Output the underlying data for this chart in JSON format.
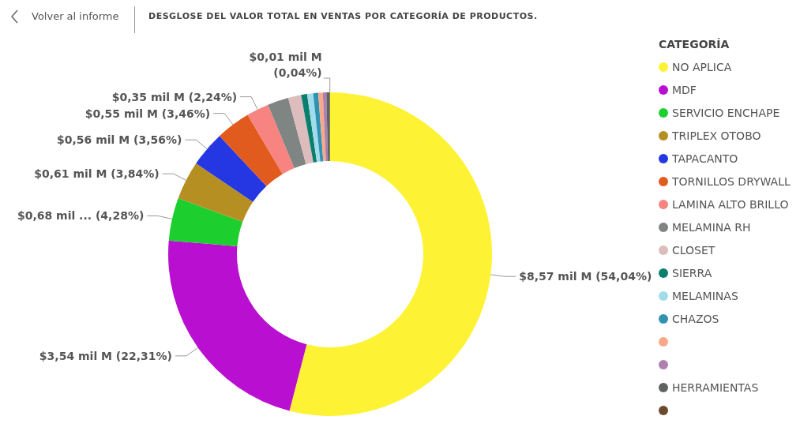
{
  "chart_data": {
    "type": "donut",
    "title": "DESGLOSE DEL VALOR TOTAL EN VENTAS POR CATEGORÍA DE PRODUCTOS.",
    "annotations": [
      "Volver al informe"
    ],
    "legend_title": "CATEGORÍA",
    "legend": "right",
    "categories": [
      "NO APLICA",
      "MDF",
      "SERVICIO ENCHAPE",
      "TRIPLEX OTOBO",
      "TAPACANTO",
      "TORNILLOS DRYWALL",
      "LAMINA ALTO BRILLO",
      "MELAMINA RH",
      "CLOSET",
      "SIERRA",
      "MELAMINAS",
      "CHAZOS",
      null,
      null,
      "HERRAMIENTAS",
      null
    ],
    "values": [
      54.04,
      22.31,
      4.28,
      3.84,
      3.56,
      3.46,
      2.24,
      2.1,
      1.3,
      0.6,
      0.6,
      0.5,
      0.45,
      0.35,
      0.33,
      0.04
    ],
    "value_labels": [
      "$8,57 mil M (54,04%)",
      "$3,54 mil M (22,31%)",
      "$0,68 mil ... (4,28%)",
      "$0,61 mil M (3,84%)",
      "$0,56 mil M (3,56%)",
      "$0,55 mil M (3,46%)",
      "$0,35 mil M (2,24%)",
      null,
      null,
      null,
      null,
      null,
      null,
      null,
      null,
      "$0,01 mil M (0,04%)"
    ],
    "colors": [
      "#fef234",
      "#b80fd0",
      "#1ccf2e",
      "#b58f22",
      "#2537e3",
      "#e15b1e",
      "#f78480",
      "#7f8583",
      "#dcbcbc",
      "#0b7f6d",
      "#a0dcea",
      "#2f93b3",
      "#f9a98a",
      "#ad80ad",
      "#5e6262",
      "#6a4b2b"
    ]
  }
}
